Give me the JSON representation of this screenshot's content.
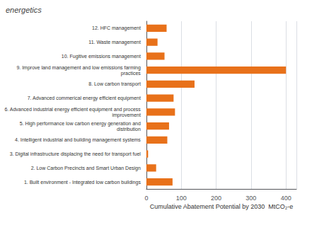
{
  "chart_data": {
    "type": "bar",
    "orientation": "horizontal",
    "categories": [
      "1. Built environment - Integrated low carbon buildings",
      "2. Low Carbon Precincts and Smart Urban Design",
      "3. Digital infrastructure displacing the need for transport fuel",
      "4. Intelligent industrial and building management systems",
      "5. High performance low carbon energy generation and\n    distribution",
      "6. Advanced industrial energy efficient equipment and process\n    improvement",
      "7. Advanced commerical energy efficient equipment",
      "8. Low carbon transport",
      "9. Improve land management and low emissions farming\n    practices",
      "10. Fugitive emissions management",
      "11. Waste management",
      "12. HFC management"
    ],
    "values": [
      75,
      28,
      5,
      60,
      65,
      82,
      78,
      138,
      400,
      52,
      32,
      58
    ],
    "color": "#E8711A",
    "xlabel": "Cumulative Abatement Potential by 2030  MtCO₂-e",
    "xlim": [
      0,
      430
    ],
    "xticks": [
      0,
      100,
      200,
      300,
      400
    ],
    "grid": true,
    "annotations": [
      "energetics"
    ]
  }
}
